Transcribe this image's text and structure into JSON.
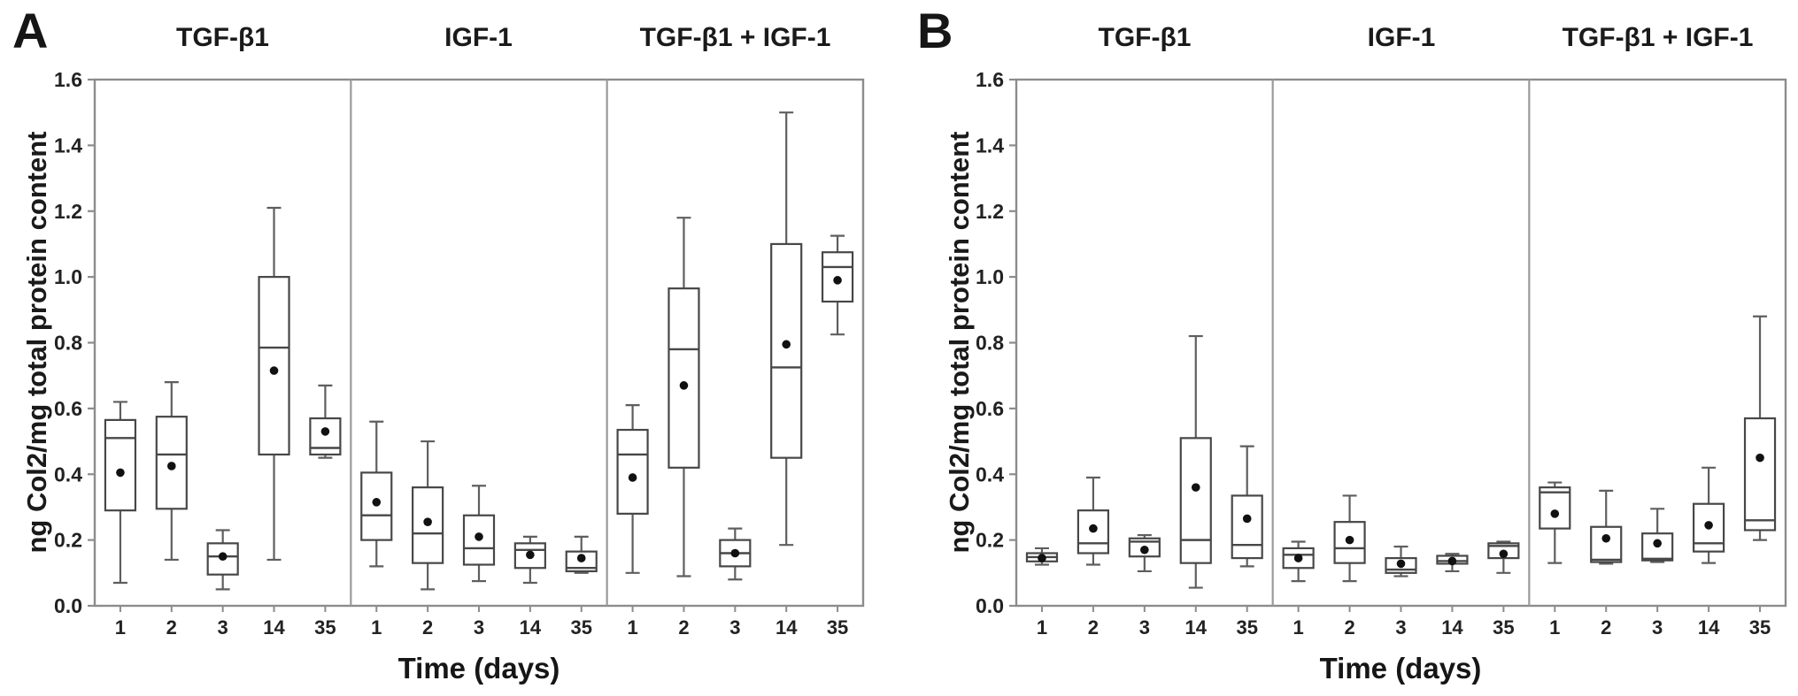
{
  "figure": {
    "background": "#ffffff",
    "colors": {
      "box_stroke": "#474747",
      "whisker_stroke": "#5e5e5e",
      "frame_stroke": "#8c8c8c",
      "separator_stroke": "#9a9a9a",
      "mean_dot": "#111111",
      "text": "#1d1d1d"
    }
  },
  "chart_data": {
    "type": "boxplot",
    "description": "Two-panel box plot figure (A, B); each panel has three growth-factor conditions over five time points; dots mark means",
    "panels": [
      {
        "panel_label": "A",
        "ylabel": "ng Col2/mg total protein content",
        "xlabel": "Time (days)",
        "ylim": [
          0.0,
          1.6
        ],
        "yticks": [
          "0.0",
          "0.2",
          "0.4",
          "0.6",
          "0.8",
          "1.0",
          "1.2",
          "1.4",
          "1.6"
        ],
        "categories": [
          "1",
          "2",
          "3",
          "14",
          "35"
        ],
        "groups": [
          {
            "title": "TGF-β1",
            "boxes": [
              {
                "day": "1",
                "low": 0.07,
                "q1": 0.29,
                "median": 0.51,
                "q3": 0.565,
                "high": 0.62,
                "mean": 0.405
              },
              {
                "day": "2",
                "low": 0.14,
                "q1": 0.295,
                "median": 0.46,
                "q3": 0.575,
                "high": 0.68,
                "mean": 0.425
              },
              {
                "day": "3",
                "low": 0.05,
                "q1": 0.095,
                "median": 0.15,
                "q3": 0.19,
                "high": 0.23,
                "mean": 0.15
              },
              {
                "day": "14",
                "low": 0.14,
                "q1": 0.46,
                "median": 0.785,
                "q3": 1.0,
                "high": 1.21,
                "mean": 0.715
              },
              {
                "day": "35",
                "low": 0.45,
                "q1": 0.46,
                "median": 0.48,
                "q3": 0.57,
                "high": 0.67,
                "mean": 0.53
              }
            ]
          },
          {
            "title": "IGF-1",
            "boxes": [
              {
                "day": "1",
                "low": 0.12,
                "q1": 0.2,
                "median": 0.275,
                "q3": 0.405,
                "high": 0.56,
                "mean": 0.315
              },
              {
                "day": "2",
                "low": 0.05,
                "q1": 0.13,
                "median": 0.22,
                "q3": 0.36,
                "high": 0.5,
                "mean": 0.255
              },
              {
                "day": "3",
                "low": 0.075,
                "q1": 0.125,
                "median": 0.175,
                "q3": 0.275,
                "high": 0.365,
                "mean": 0.21
              },
              {
                "day": "14",
                "low": 0.07,
                "q1": 0.115,
                "median": 0.17,
                "q3": 0.19,
                "high": 0.21,
                "mean": 0.155
              },
              {
                "day": "35",
                "low": 0.1,
                "q1": 0.105,
                "median": 0.115,
                "q3": 0.165,
                "high": 0.21,
                "mean": 0.145
              }
            ]
          },
          {
            "title": "TGF-β1 + IGF-1",
            "boxes": [
              {
                "day": "1",
                "low": 0.1,
                "q1": 0.28,
                "median": 0.46,
                "q3": 0.535,
                "high": 0.61,
                "mean": 0.39
              },
              {
                "day": "2",
                "low": 0.09,
                "q1": 0.42,
                "median": 0.78,
                "q3": 0.965,
                "high": 1.18,
                "mean": 0.67
              },
              {
                "day": "3",
                "low": 0.08,
                "q1": 0.12,
                "median": 0.16,
                "q3": 0.2,
                "high": 0.235,
                "mean": 0.16
              },
              {
                "day": "14",
                "low": 0.185,
                "q1": 0.45,
                "median": 0.725,
                "q3": 1.1,
                "high": 1.5,
                "mean": 0.795
              },
              {
                "day": "35",
                "low": 0.825,
                "q1": 0.925,
                "median": 1.03,
                "q3": 1.075,
                "high": 1.125,
                "mean": 0.99
              }
            ]
          }
        ]
      },
      {
        "panel_label": "B",
        "ylabel": "ng Col2/mg total protein content",
        "xlabel": "Time (days)",
        "ylim": [
          0.0,
          1.6
        ],
        "yticks": [
          "0.0",
          "0.2",
          "0.4",
          "0.6",
          "0.8",
          "1.0",
          "1.2",
          "1.4",
          "1.6"
        ],
        "categories": [
          "1",
          "2",
          "3",
          "14",
          "35"
        ],
        "groups": [
          {
            "title": "TGF-β1",
            "boxes": [
              {
                "day": "1",
                "low": 0.125,
                "q1": 0.135,
                "median": 0.148,
                "q3": 0.16,
                "high": 0.175,
                "mean": 0.145
              },
              {
                "day": "2",
                "low": 0.125,
                "q1": 0.16,
                "median": 0.19,
                "q3": 0.29,
                "high": 0.39,
                "mean": 0.235
              },
              {
                "day": "3",
                "low": 0.105,
                "q1": 0.15,
                "median": 0.195,
                "q3": 0.205,
                "high": 0.215,
                "mean": 0.17
              },
              {
                "day": "14",
                "low": 0.055,
                "q1": 0.13,
                "median": 0.2,
                "q3": 0.51,
                "high": 0.82,
                "mean": 0.36
              },
              {
                "day": "35",
                "low": 0.12,
                "q1": 0.145,
                "median": 0.185,
                "q3": 0.335,
                "high": 0.485,
                "mean": 0.265
              }
            ]
          },
          {
            "title": "IGF-1",
            "boxes": [
              {
                "day": "1",
                "low": 0.075,
                "q1": 0.115,
                "median": 0.155,
                "q3": 0.175,
                "high": 0.195,
                "mean": 0.145
              },
              {
                "day": "2",
                "low": 0.075,
                "q1": 0.13,
                "median": 0.175,
                "q3": 0.255,
                "high": 0.335,
                "mean": 0.2
              },
              {
                "day": "3",
                "low": 0.09,
                "q1": 0.1,
                "median": 0.11,
                "q3": 0.145,
                "high": 0.18,
                "mean": 0.128
              },
              {
                "day": "14",
                "low": 0.105,
                "q1": 0.128,
                "median": 0.136,
                "q3": 0.152,
                "high": 0.158,
                "mean": 0.136
              },
              {
                "day": "35",
                "low": 0.1,
                "q1": 0.145,
                "median": 0.182,
                "q3": 0.19,
                "high": 0.195,
                "mean": 0.158
              }
            ]
          },
          {
            "title": "TGF-β1 + IGF-1",
            "boxes": [
              {
                "day": "1",
                "low": 0.13,
                "q1": 0.235,
                "median": 0.345,
                "q3": 0.36,
                "high": 0.375,
                "mean": 0.28
              },
              {
                "day": "2",
                "low": 0.128,
                "q1": 0.133,
                "median": 0.14,
                "q3": 0.24,
                "high": 0.35,
                "mean": 0.205
              },
              {
                "day": "3",
                "low": 0.133,
                "q1": 0.138,
                "median": 0.143,
                "q3": 0.22,
                "high": 0.295,
                "mean": 0.19
              },
              {
                "day": "14",
                "low": 0.13,
                "q1": 0.165,
                "median": 0.19,
                "q3": 0.31,
                "high": 0.42,
                "mean": 0.245
              },
              {
                "day": "35",
                "low": 0.2,
                "q1": 0.23,
                "median": 0.26,
                "q3": 0.57,
                "high": 0.88,
                "mean": 0.45
              }
            ]
          }
        ]
      }
    ]
  }
}
